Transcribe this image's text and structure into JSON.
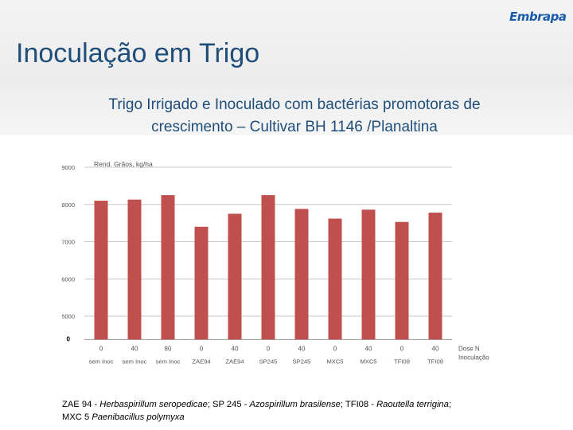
{
  "header": {
    "title": "Inoculação em Trigo",
    "logo_text": "Embrapa",
    "subtitle_line1": "Trigo Irrigado e Inoculado com bactérias promotoras de",
    "subtitle_line2": "crescimento – Cultivar BH 1146 /Planaltina"
  },
  "colors": {
    "bar": "#c0504d",
    "title": "#1e4e79",
    "grid": "#c8c8c8",
    "axis_text": "#555555"
  },
  "chart_data": {
    "type": "bar",
    "ylabel": "Rend. Grãos, kg/ha",
    "xlabel_line1": "Dose N",
    "xlabel_line2": "Inoculação",
    "ylim": [
      4500,
      9000
    ],
    "yticks": [
      9000,
      8000,
      7000,
      6000,
      5000
    ],
    "zero_label": "0",
    "grid": true,
    "categories": [
      {
        "dose": "0",
        "treatment": "sem Inoc"
      },
      {
        "dose": "40",
        "treatment": "sem Inoc"
      },
      {
        "dose": "80",
        "treatment": "sem Inoc"
      },
      {
        "dose": "0",
        "treatment": "ZAE94"
      },
      {
        "dose": "40",
        "treatment": "ZAE94"
      },
      {
        "dose": "0",
        "treatment": "SP245"
      },
      {
        "dose": "40",
        "treatment": "SP245"
      },
      {
        "dose": "0",
        "treatment": "MXC5"
      },
      {
        "dose": "40",
        "treatment": "MXC5"
      },
      {
        "dose": "0",
        "treatment": "TFI08"
      },
      {
        "dose": "40",
        "treatment": "TFI08"
      }
    ],
    "values": [
      8100,
      8130,
      8250,
      7400,
      7750,
      8250,
      7880,
      7620,
      7860,
      7530,
      7780
    ]
  },
  "caption": {
    "p1": "ZAE 94 - ",
    "p1i": "Herbaspirillum seropedicae",
    "p2": "; SP 245 - ",
    "p2i": "Azospirillum brasilense",
    "p3": "; TFI08 - ",
    "p3i": "Raoutella terrigina",
    "p4": ";",
    "p5": "MXC 5  ",
    "p5i": "Paenibacillus polymyxa"
  }
}
